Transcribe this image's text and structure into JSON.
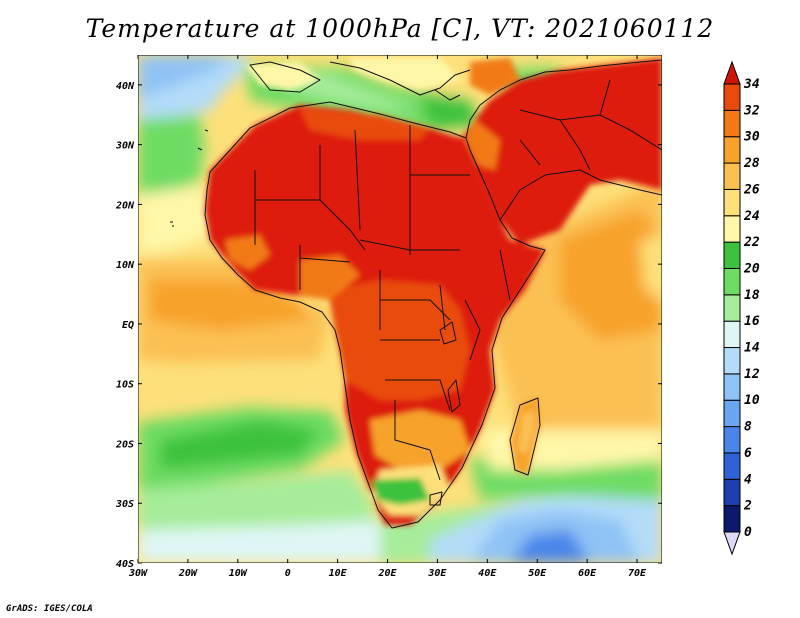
{
  "title": "Temperature at 1000hPa [C], VT: 2021060112",
  "credit": "GrADS: IGES/COLA",
  "map": {
    "lon_range": [
      -30,
      75
    ],
    "lat_range": [
      -40,
      45
    ],
    "lon_ticks": [
      {
        "value": -30,
        "label": "30W"
      },
      {
        "value": -20,
        "label": "20W"
      },
      {
        "value": -10,
        "label": "10W"
      },
      {
        "value": 0,
        "label": "0"
      },
      {
        "value": 10,
        "label": "10E"
      },
      {
        "value": 20,
        "label": "20E"
      },
      {
        "value": 30,
        "label": "30E"
      },
      {
        "value": 40,
        "label": "40E"
      },
      {
        "value": 50,
        "label": "50E"
      },
      {
        "value": 60,
        "label": "60E"
      },
      {
        "value": 70,
        "label": "70E"
      }
    ],
    "lat_ticks": [
      {
        "value": 40,
        "label": "40N"
      },
      {
        "value": 30,
        "label": "30N"
      },
      {
        "value": 20,
        "label": "20N"
      },
      {
        "value": 10,
        "label": "10N"
      },
      {
        "value": 0,
        "label": "EQ"
      },
      {
        "value": -10,
        "label": "10S"
      },
      {
        "value": -20,
        "label": "20S"
      },
      {
        "value": -30,
        "label": "30S"
      },
      {
        "value": -40,
        "label": "40S"
      }
    ]
  },
  "colorbar": {
    "labels": [
      "0",
      "2",
      "4",
      "6",
      "8",
      "10",
      "12",
      "14",
      "16",
      "18",
      "20",
      "22",
      "24",
      "26",
      "28",
      "30",
      "32",
      "34"
    ],
    "colors": [
      "#0c1a6e",
      "#1c3fb0",
      "#2e62d6",
      "#4a86ea",
      "#6aa6f0",
      "#8fc2f5",
      "#b2dcf8",
      "#dff6f4",
      "#a6ec9a",
      "#6edc64",
      "#3cc23c",
      "#fff7a8",
      "#fde07a",
      "#fbc052",
      "#f7a22c",
      "#f27a14",
      "#e94b0e",
      "#dd1c0c"
    ],
    "under_color": "#ddd8f6",
    "over_color": "#d11206"
  }
}
